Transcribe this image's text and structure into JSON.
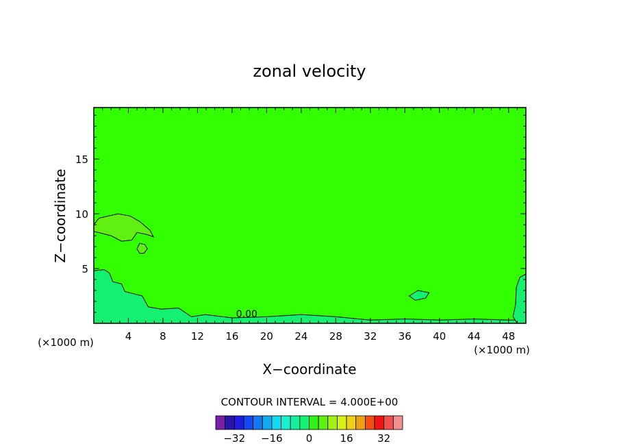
{
  "chart_data": {
    "type": "heatmap",
    "title": "zonal velocity",
    "xlabel": "X−coordinate",
    "ylabel": "Z−coordinate",
    "x_unit": "(×1000 m)",
    "x_unit_right": "(×1000 m)",
    "xlim": [
      0,
      50
    ],
    "ylim": [
      0,
      19.7
    ],
    "x_ticks": [
      "4",
      "8",
      "12",
      "16",
      "20",
      "24",
      "28",
      "32",
      "36",
      "40",
      "44",
      "48"
    ],
    "x_tick_values": [
      4,
      8,
      12,
      16,
      20,
      24,
      28,
      32,
      36,
      40,
      44,
      48
    ],
    "y_ticks": [
      "5",
      "10",
      "15"
    ],
    "y_tick_values": [
      5,
      10,
      15
    ],
    "contour_interval_text": "CONTOUR INTERVAL = 4.000E+00",
    "contour_label": "0.00",
    "colorbar": {
      "levels": [
        -36,
        -32,
        -28,
        -24,
        -20,
        -16,
        -12,
        -8,
        -4,
        0,
        4,
        8,
        12,
        16,
        20,
        24,
        28,
        32,
        36
      ],
      "tick_labels": [
        "−32",
        "−16",
        "0",
        "16",
        "32"
      ],
      "tick_values": [
        -32,
        -16,
        0,
        16,
        32
      ],
      "colors": [
        "#7a1fa8",
        "#2a14a8",
        "#1e1ee0",
        "#1448f0",
        "#1478f0",
        "#14a8f0",
        "#14d8f0",
        "#14f0d0",
        "#14f0a0",
        "#14f070",
        "#30f014",
        "#60f014",
        "#a0f014",
        "#d8f014",
        "#f0d014",
        "#f0a014",
        "#f05014",
        "#f01414",
        "#f05050",
        "#f09090"
      ]
    },
    "field": {
      "background_color": "#32ff00",
      "regions": [
        {
          "name": "near-surface-weak-negative",
          "color": "#14f070",
          "polygon": [
            [
              0,
              0
            ],
            [
              0,
              4.8
            ],
            [
              1.2,
              4.9
            ],
            [
              1.8,
              4.6
            ],
            [
              2.2,
              3.8
            ],
            [
              3.2,
              3.6
            ],
            [
              3.6,
              2.9
            ],
            [
              5.6,
              2.5
            ],
            [
              6.3,
              1.5
            ],
            [
              7.8,
              1.3
            ],
            [
              9.8,
              1.4
            ],
            [
              11.3,
              0.6
            ],
            [
              12.9,
              0.8
            ],
            [
              16,
              0.5
            ],
            [
              20,
              0.6
            ],
            [
              24,
              0.8
            ],
            [
              28,
              0.6
            ],
            [
              32,
              0.3
            ],
            [
              36,
              0.4
            ],
            [
              40,
              0.3
            ],
            [
              44,
              0.4
            ],
            [
              48,
              0.3
            ],
            [
              50,
              0.3
            ],
            [
              50,
              0
            ]
          ]
        },
        {
          "name": "right-edge-weak-negative",
          "color": "#14f070",
          "polygon": [
            [
              50,
              0
            ],
            [
              50,
              4.5
            ],
            [
              49.3,
              4.2
            ],
            [
              48.9,
              3.3
            ],
            [
              48.8,
              1.7
            ],
            [
              48.5,
              0.6
            ],
            [
              49,
              0
            ]
          ]
        },
        {
          "name": "upper-left-weak-positive",
          "color": "#60f014",
          "polygon": [
            [
              0,
              9
            ],
            [
              0.6,
              9.6
            ],
            [
              2.8,
              10.0
            ],
            [
              4.2,
              9.8
            ],
            [
              5.3,
              9.3
            ],
            [
              6.5,
              8.5
            ],
            [
              6.9,
              7.9
            ],
            [
              6.2,
              8.1
            ],
            [
              5.0,
              8.3
            ],
            [
              4.4,
              7.6
            ],
            [
              3.2,
              7.5
            ],
            [
              2.0,
              8.0
            ],
            [
              1.0,
              8.2
            ],
            [
              0,
              8.4
            ]
          ]
        },
        {
          "name": "small-weak-positive-eddy",
          "color": "#60f014",
          "polygon": [
            [
              5.0,
              6.8
            ],
            [
              5.3,
              7.3
            ],
            [
              5.9,
              7.2
            ],
            [
              6.2,
              6.8
            ],
            [
              5.8,
              6.4
            ],
            [
              5.3,
              6.4
            ]
          ]
        },
        {
          "name": "right-weak-negative-eddy",
          "color": "#14f070",
          "polygon": [
            [
              36.5,
              2.5
            ],
            [
              37.5,
              3.0
            ],
            [
              38.8,
              2.8
            ],
            [
              38.4,
              2.3
            ],
            [
              37.2,
              2.1
            ]
          ]
        }
      ]
    }
  }
}
